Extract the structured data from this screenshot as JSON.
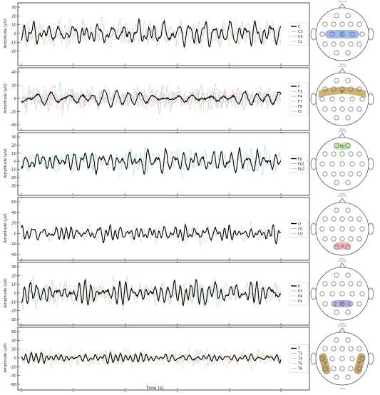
{
  "figure": {
    "x_label": "Time (s)",
    "y_label": "Amplitude (µV)",
    "x_ticks": [
      0,
      1,
      2,
      3,
      4,
      5
    ],
    "headmap_nasion": "NASION",
    "headmap_inion": "INION"
  },
  "chart_data": [
    {
      "type": "line",
      "region": "C",
      "x_range": [
        0,
        5
      ],
      "ylim": [
        -30,
        30
      ],
      "y_ticks": [
        -20,
        -10,
        0,
        10,
        20,
        30
      ],
      "grid": false,
      "legend_position": "right",
      "series": [
        {
          "name": "C",
          "color": "#000000",
          "bold": true,
          "seed": 11,
          "amp": 10
        },
        {
          "name": "C3",
          "color": "#7fb8d9",
          "bold": false,
          "seed": 12,
          "amp": 11
        },
        {
          "name": "C4",
          "color": "#f2b8a0",
          "bold": false,
          "seed": 13,
          "amp": 11
        },
        {
          "name": "Cz",
          "color": "#b0d79a",
          "bold": false,
          "seed": 14,
          "amp": 10
        }
      ],
      "region_color": "#8fa6e8",
      "region_shape": "center-bar"
    },
    {
      "type": "line",
      "region": "F",
      "x_range": [
        0,
        5
      ],
      "ylim": [
        -40,
        40
      ],
      "y_ticks": [
        -40,
        -20,
        0,
        20,
        40
      ],
      "grid": false,
      "legend_position": "right",
      "series": [
        {
          "name": "F",
          "color": "#000000",
          "bold": true,
          "seed": 21,
          "amp": 10
        },
        {
          "name": "F3",
          "color": "#7fb8d9",
          "bold": false,
          "seed": 22,
          "amp": 13
        },
        {
          "name": "F4",
          "color": "#e8908a",
          "bold": false,
          "seed": 23,
          "amp": 15
        },
        {
          "name": "F7",
          "color": "#b0d79a",
          "bold": false,
          "seed": 24,
          "amp": 12
        },
        {
          "name": "F8",
          "color": "#f3c49a",
          "bold": false,
          "seed": 25,
          "amp": 12
        },
        {
          "name": "Fz",
          "color": "#c9b3dc",
          "bold": false,
          "seed": 26,
          "amp": 11
        }
      ],
      "region_color": "#c9a35c",
      "region_shape": "frontal-bar"
    },
    {
      "type": "line",
      "region": "Fp",
      "x_range": [
        0,
        5
      ],
      "ylim": [
        -35,
        30
      ],
      "y_ticks": [
        -30,
        -20,
        -10,
        0,
        10,
        20,
        30
      ],
      "grid": false,
      "legend_position": "right",
      "series": [
        {
          "name": "Fp",
          "color": "#000000",
          "bold": true,
          "seed": 31,
          "amp": 11
        },
        {
          "name": "Fp1",
          "color": "#7fb8d9",
          "bold": false,
          "seed": 32,
          "amp": 13
        },
        {
          "name": "Fp2",
          "color": "#b0d79a",
          "bold": false,
          "seed": 33,
          "amp": 13
        }
      ],
      "region_color": "#b9e0a4",
      "region_shape": "frontopolar"
    },
    {
      "type": "line",
      "region": "O",
      "x_range": [
        0,
        5
      ],
      "ylim": [
        -40,
        60
      ],
      "y_ticks": [
        -40,
        -20,
        0,
        20,
        40,
        60
      ],
      "grid": false,
      "legend_position": "right",
      "series": [
        {
          "name": "O",
          "color": "#000000",
          "bold": true,
          "seed": 41,
          "amp": 10
        },
        {
          "name": "O1",
          "color": "#7fb8d9",
          "bold": false,
          "seed": 42,
          "amp": 12
        },
        {
          "name": "O2",
          "color": "#f2b8a0",
          "bold": false,
          "seed": 43,
          "amp": 12
        }
      ],
      "region_color": "#e8a7a7",
      "region_shape": "occipital"
    },
    {
      "type": "line",
      "region": "P",
      "x_range": [
        0,
        5
      ],
      "ylim": [
        -30,
        30
      ],
      "y_ticks": [
        -30,
        -20,
        -10,
        0,
        10,
        20,
        30
      ],
      "grid": false,
      "legend_position": "right",
      "series": [
        {
          "name": "P",
          "color": "#000000",
          "bold": true,
          "seed": 51,
          "amp": 11
        },
        {
          "name": "P3",
          "color": "#7fb8d9",
          "bold": false,
          "seed": 52,
          "amp": 12
        },
        {
          "name": "P4",
          "color": "#f2b8a0",
          "bold": false,
          "seed": 53,
          "amp": 12
        },
        {
          "name": "Pz",
          "color": "#b0d79a",
          "bold": false,
          "seed": 54,
          "amp": 11
        }
      ],
      "region_color": "#a79ee6",
      "region_shape": "parietal"
    },
    {
      "type": "line",
      "region": "T",
      "x_range": [
        0,
        5
      ],
      "ylim": [
        -60,
        60
      ],
      "y_ticks": [
        -60,
        -40,
        -20,
        0,
        20,
        40,
        60
      ],
      "grid": false,
      "legend_position": "right",
      "series": [
        {
          "name": "T",
          "color": "#000000",
          "bold": true,
          "seed": 61,
          "amp": 8
        },
        {
          "name": "T3",
          "color": "#7fb8d9",
          "bold": false,
          "seed": 62,
          "amp": 12
        },
        {
          "name": "T4",
          "color": "#f2b8a0",
          "bold": false,
          "seed": 63,
          "amp": 14
        },
        {
          "name": "T5",
          "color": "#f3c49a",
          "bold": false,
          "seed": 64,
          "amp": 18
        },
        {
          "name": "T6",
          "color": "#b0d79a",
          "bold": false,
          "seed": 65,
          "amp": 12
        }
      ],
      "region_color": "#b8955a",
      "region_shape": "temporal"
    }
  ]
}
